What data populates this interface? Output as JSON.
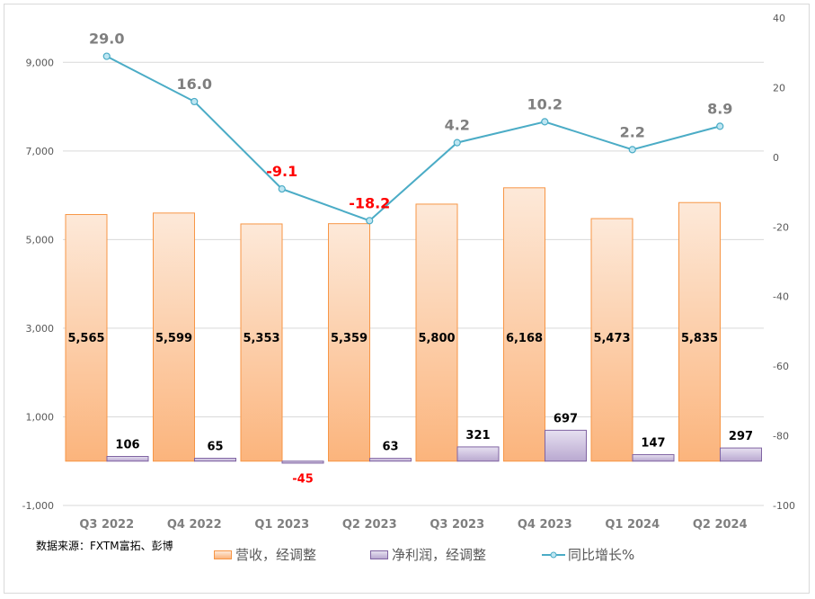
{
  "chart_data": {
    "type": "bar+line",
    "categories": [
      "Q3 2022",
      "Q4 2022",
      "Q1 2023",
      "Q2 2023",
      "Q3 2023",
      "Q4 2023",
      "Q1 2024",
      "Q2 2024"
    ],
    "series": [
      {
        "name": "营收，经调整",
        "type": "bar",
        "axis": "left",
        "values": [
          5565,
          5599,
          5353,
          5359,
          5800,
          6168,
          5473,
          5835
        ],
        "labels": [
          "5,565",
          "5,599",
          "5,353",
          "5,359",
          "5,800",
          "6,168",
          "5,473",
          "5,835"
        ],
        "color": "#f79646"
      },
      {
        "name": "净利润，经调整",
        "type": "bar",
        "axis": "left",
        "values": [
          106,
          65,
          -45,
          63,
          321,
          697,
          147,
          297
        ],
        "labels": [
          "106",
          "65",
          "-45",
          "63",
          "321",
          "697",
          "147",
          "297"
        ],
        "color": "#8064a2"
      },
      {
        "name": "同比增长%",
        "type": "line",
        "axis": "right",
        "values": [
          29.0,
          16.0,
          -9.1,
          -18.2,
          4.2,
          10.2,
          2.2,
          8.9
        ],
        "labels": [
          "29.0",
          "16.0",
          "-9.1",
          "-18.2",
          "4.2",
          "10.2",
          "2.2",
          "8.9"
        ],
        "color": "#4bacc6"
      }
    ],
    "y_left": {
      "ylim": [
        -1000,
        10000
      ],
      "ticks": [
        9000,
        7000,
        5000,
        3000,
        1000,
        -1000
      ],
      "tick_labels": [
        "9,000",
        "7,000",
        "5,000",
        "3,000",
        "1,000",
        "-1,000"
      ]
    },
    "y_right": {
      "ylim": [
        -100,
        40
      ],
      "ticks": [
        40,
        20,
        0,
        -20,
        -40,
        -60,
        -80,
        -100
      ],
      "tick_labels": [
        "40",
        "20",
        "0",
        "-20",
        "-40",
        "-60",
        "-80",
        "-100"
      ]
    },
    "grid": true,
    "legend": "bottom",
    "negative_label_color": "#ff0000"
  },
  "source": "数据来源：FXTM富拓、彭博"
}
